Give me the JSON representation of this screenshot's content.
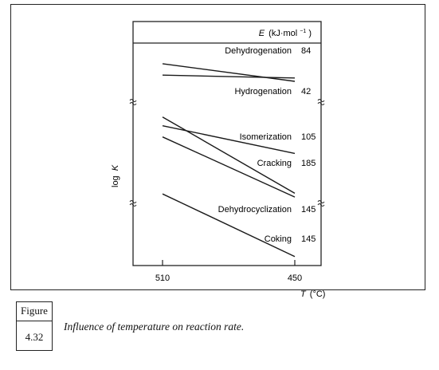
{
  "figure": {
    "label": "Figure",
    "number": "4.32",
    "caption": "Influence of temperature on reaction rate."
  },
  "chart_data": {
    "type": "line",
    "title": "",
    "xlabel_prefix": "T",
    "xlabel_unit": "(°C)",
    "ylabel_prefix": "log",
    "ylabel_var": "K",
    "legend_header": {
      "symbol": "E",
      "unit": "(kJ·mol",
      "exp": "−1",
      "close": ")"
    },
    "x_ticks": [
      510,
      450
    ],
    "xlim": [
      510,
      450
    ],
    "ylim": [
      0,
      100
    ],
    "grid": false,
    "axis_break_marks": "y-axis, two breaks on both sides",
    "series": [
      {
        "name": "Dehydrogenation",
        "E": "84",
        "x": [
          510,
          450
        ],
        "y": [
          93.5,
          85.0
        ]
      },
      {
        "name": "Hydrogenation",
        "E": "42",
        "x": [
          510,
          450
        ],
        "y": [
          88.0,
          86.6
        ]
      },
      {
        "name": "Isomerization",
        "E": "105",
        "x": [
          510,
          450
        ],
        "y": [
          63.6,
          50.2
        ]
      },
      {
        "name": "Cracking",
        "E": "185",
        "x": [
          510,
          450
        ],
        "y": [
          67.8,
          31.0
        ]
      },
      {
        "name": "Dehydrocyclization",
        "E": "145",
        "x": [
          510,
          450
        ],
        "y": [
          58.2,
          29.2
        ]
      },
      {
        "name": "Coking",
        "E": "145",
        "x": [
          510,
          450
        ],
        "y": [
          30.7,
          0.5
        ]
      }
    ]
  }
}
